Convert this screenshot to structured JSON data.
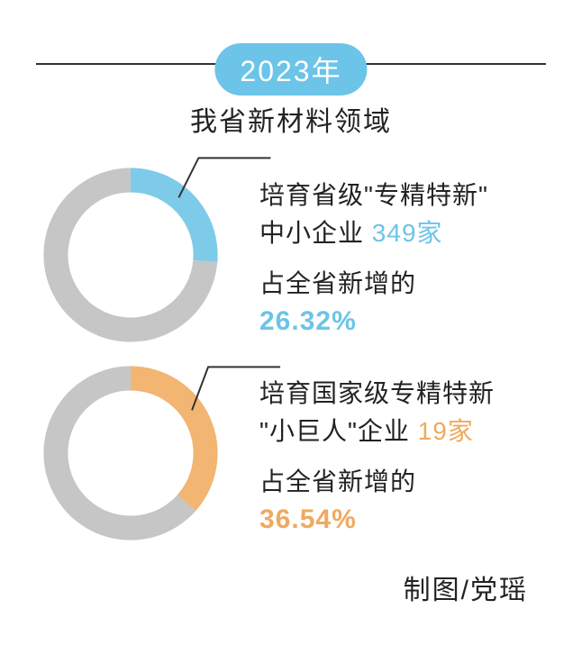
{
  "header": {
    "year_label": "2023年",
    "pill_bg": "#6cc4e8",
    "pill_color": "#ffffff",
    "rule_color": "#333333",
    "subtitle": "我省新材料领域"
  },
  "donut_style": {
    "size": 210,
    "thickness_ratio": 0.28,
    "ring_color": "#c6c6c6",
    "leader_color": "#333333",
    "leader_width": 2
  },
  "charts": [
    {
      "percent": 26.32,
      "start_angle_deg": 0,
      "slice_color": "#7ecbe9",
      "leader": {
        "inner_angle_deg": 40,
        "elbow_dx": 22,
        "elbow_dy": -44,
        "h_len": 80
      },
      "text": {
        "line1_a": "培育省级",
        "line1_b": "\"专精特新\"",
        "line2_a": "中小企业",
        "count": "349",
        "unit": "家",
        "line3": "占全省新增的",
        "pct": "26.32%",
        "highlight_class": "hl-blue"
      }
    },
    {
      "percent": 36.54,
      "start_angle_deg": 0,
      "slice_color": "#f2b572",
      "leader": {
        "inner_angle_deg": 55,
        "elbow_dx": 18,
        "elbow_dy": -48,
        "h_len": 80
      },
      "text": {
        "line1_a": "培育国家级专精特新",
        "line1_b": "",
        "line2_a": "\"小巨人\"企业",
        "count": "19",
        "unit": "家",
        "line3": "占全省新增的",
        "pct": "36.54%",
        "highlight_class": "hl-orange"
      }
    }
  ],
  "credit": "制图/党瑶"
}
